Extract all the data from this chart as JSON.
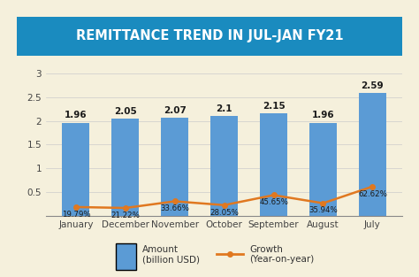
{
  "title": "REMITTANCE TREND IN JUL-JAN FY21",
  "title_bg_color": "#1A8BBF",
  "title_text_color": "#FFFFFF",
  "bg_color": "#F5F0DC",
  "plot_bg_color": "#F5F0DC",
  "categories": [
    "January",
    "December",
    "November",
    "October",
    "September",
    "August",
    "July"
  ],
  "amounts": [
    1.96,
    2.05,
    2.07,
    2.1,
    2.15,
    1.96,
    2.59
  ],
  "growth_scaled": [
    0.19,
    0.17,
    0.31,
    0.23,
    0.44,
    0.27,
    0.62
  ],
  "growth_labels": [
    "19.79%",
    "21.22%",
    "33.66%",
    "28.05%",
    "45.65%",
    "35.94%",
    "62.62%"
  ],
  "amount_labels": [
    "1.96",
    "2.05",
    "2.07",
    "2.1",
    "2.15",
    "1.96",
    "2.59"
  ],
  "bar_color": "#5B9BD5",
  "line_color": "#E07820",
  "ylim": [
    0,
    3.2
  ],
  "yticks": [
    0,
    0.5,
    1,
    1.5,
    2,
    2.5,
    3
  ],
  "legend_amount_label": "Amount\n(billion USD)",
  "legend_growth_label": "Growth\n(Year-on-year)",
  "bar_width": 0.55,
  "title_fontsize": 10.5,
  "label_fontsize": 7.5,
  "tick_fontsize": 7.5,
  "legend_fontsize": 7.5
}
